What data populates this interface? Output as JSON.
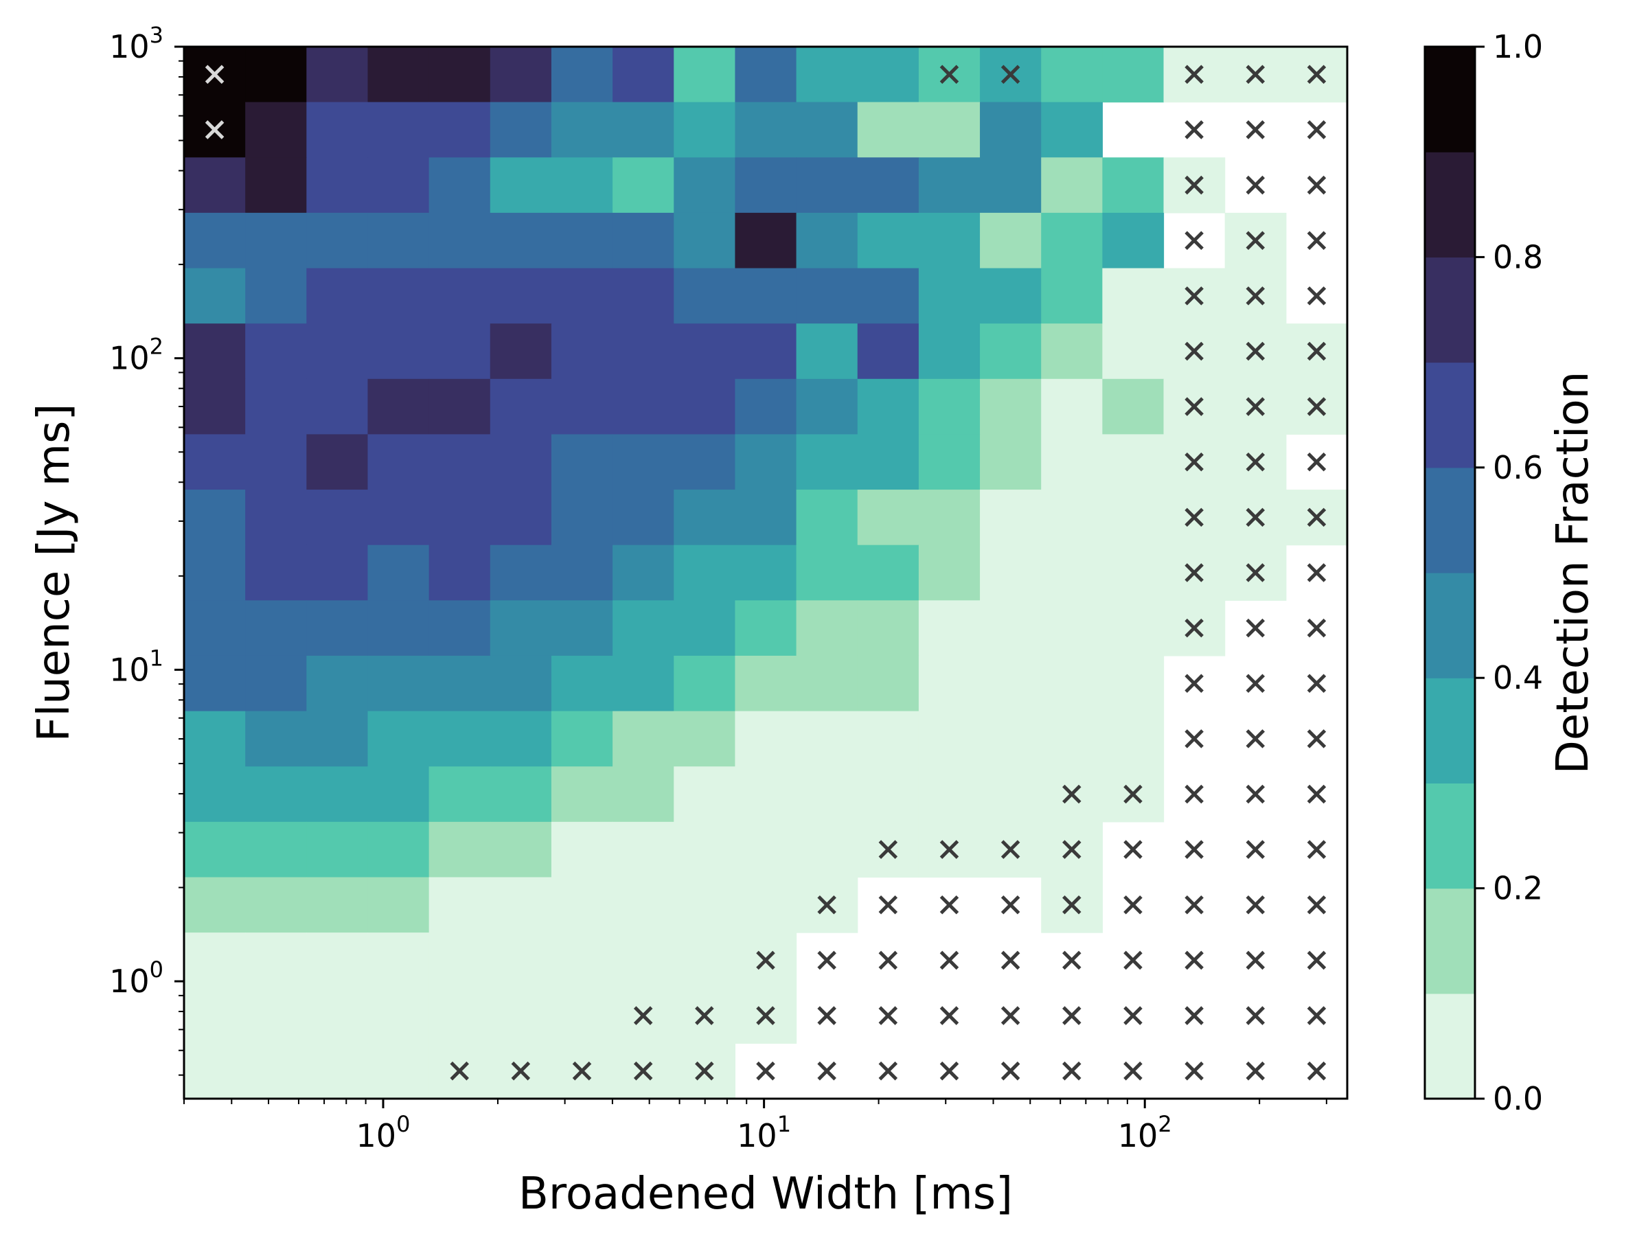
{
  "chart_data": {
    "type": "heatmap",
    "xlabel": "Broadened Width [ms]",
    "ylabel": "Fluence [Jy ms]",
    "x_scale": "log",
    "y_scale": "log",
    "x_range": [
      0.3,
      340
    ],
    "y_range": [
      0.42,
      1000
    ],
    "x_ticks": [
      {
        "value": 1,
        "base": "10",
        "exp": "0"
      },
      {
        "value": 10,
        "base": "10",
        "exp": "1"
      },
      {
        "value": 100,
        "base": "10",
        "exp": "2"
      }
    ],
    "y_ticks": [
      {
        "value": 1,
        "base": "10",
        "exp": "0"
      },
      {
        "value": 10,
        "base": "10",
        "exp": "1"
      },
      {
        "value": 100,
        "base": "10",
        "exp": "2"
      },
      {
        "value": 1000,
        "base": "10",
        "exp": "3"
      }
    ],
    "colorbar": {
      "label": "Detection Fraction",
      "range": [
        0,
        1
      ],
      "bins": 10,
      "colors": [
        "#def5e5",
        "#a0dfb9",
        "#54c9ad",
        "#38aaac",
        "#348ba6",
        "#366da0",
        "#3e4a94",
        "#382f61",
        "#2a1b35",
        "#0b0405"
      ],
      "ticks": [
        "0.0",
        "0.2",
        "0.4",
        "0.6",
        "0.8",
        "1.0"
      ]
    },
    "grid": {
      "n_cols": 19,
      "n_rows": 19,
      "x_edges_note": "log-spaced bins from ~0.3 ms to ~340 ms",
      "y_edges_note": "log-spaced bins from ~0.42 to 1000 Jy ms",
      "rows_top_to_bottom": [
        [
          9,
          9,
          7,
          8,
          8,
          7,
          5,
          6,
          2,
          5,
          3,
          3,
          2,
          3,
          2,
          2,
          0,
          0,
          0
        ],
        [
          9,
          8,
          6,
          6,
          6,
          5,
          4,
          4,
          3,
          4,
          4,
          1,
          1,
          4,
          3,
          -1,
          -1,
          -1,
          -1
        ],
        [
          7,
          8,
          6,
          6,
          5,
          3,
          3,
          2,
          4,
          5,
          5,
          5,
          4,
          4,
          1,
          2,
          0,
          -1,
          -1
        ],
        [
          5,
          5,
          5,
          5,
          5,
          5,
          5,
          5,
          4,
          8,
          4,
          3,
          3,
          1,
          2,
          3,
          -1,
          0,
          -1
        ],
        [
          4,
          5,
          6,
          6,
          6,
          6,
          6,
          6,
          5,
          5,
          5,
          5,
          3,
          3,
          2,
          0,
          0,
          0,
          -1
        ],
        [
          7,
          6,
          6,
          6,
          6,
          7,
          6,
          6,
          6,
          6,
          3,
          6,
          3,
          2,
          1,
          0,
          0,
          0,
          0
        ],
        [
          7,
          6,
          6,
          7,
          7,
          6,
          6,
          6,
          6,
          5,
          4,
          3,
          2,
          1,
          0,
          1,
          0,
          0,
          0
        ],
        [
          6,
          6,
          7,
          6,
          6,
          6,
          5,
          5,
          5,
          4,
          3,
          3,
          2,
          1,
          0,
          0,
          0,
          0,
          -1
        ],
        [
          5,
          6,
          6,
          6,
          6,
          6,
          5,
          5,
          4,
          4,
          2,
          1,
          1,
          0,
          0,
          0,
          0,
          0,
          0
        ],
        [
          5,
          6,
          6,
          5,
          6,
          5,
          5,
          4,
          3,
          3,
          2,
          2,
          1,
          0,
          0,
          0,
          0,
          0,
          -1
        ],
        [
          5,
          5,
          5,
          5,
          5,
          4,
          4,
          3,
          3,
          2,
          1,
          1,
          0,
          0,
          0,
          0,
          0,
          -1,
          -1
        ],
        [
          5,
          5,
          4,
          4,
          4,
          4,
          3,
          3,
          2,
          1,
          1,
          1,
          0,
          0,
          0,
          0,
          -1,
          -1,
          -1
        ],
        [
          3,
          4,
          4,
          3,
          3,
          3,
          2,
          1,
          1,
          0,
          0,
          0,
          0,
          0,
          0,
          0,
          -1,
          -1,
          -1
        ],
        [
          3,
          3,
          3,
          3,
          2,
          2,
          1,
          1,
          0,
          0,
          0,
          0,
          0,
          0,
          0,
          0,
          -1,
          -1,
          -1
        ],
        [
          2,
          2,
          2,
          2,
          1,
          1,
          0,
          0,
          0,
          0,
          0,
          0,
          0,
          0,
          0,
          -1,
          -1,
          -1,
          -1
        ],
        [
          1,
          1,
          1,
          1,
          0,
          0,
          0,
          0,
          0,
          0,
          0,
          -1,
          -1,
          -1,
          0,
          -1,
          -1,
          -1,
          -1
        ],
        [
          0,
          0,
          0,
          0,
          0,
          0,
          0,
          0,
          0,
          0,
          -1,
          -1,
          -1,
          -1,
          -1,
          -1,
          -1,
          -1,
          -1
        ],
        [
          0,
          0,
          0,
          0,
          0,
          0,
          0,
          0,
          0,
          0,
          -1,
          -1,
          -1,
          -1,
          -1,
          -1,
          -1,
          -1,
          -1
        ],
        [
          0,
          0,
          0,
          0,
          0,
          0,
          0,
          0,
          0,
          -1,
          -1,
          -1,
          -1,
          -1,
          -1,
          -1,
          -1,
          -1,
          -1
        ]
      ],
      "x_marks_top_to_bottom": [
        [
          0,
          "light"
        ],
        [
          12,
          "dark"
        ],
        [
          13,
          "dark"
        ],
        [
          16,
          "dark"
        ],
        [
          17,
          "dark"
        ],
        [
          18,
          "dark"
        ]
      ],
      "x_marks_detail": [
        {
          "row": 0,
          "cols": [
            {
              "c": 0,
              "s": "light"
            },
            {
              "c": 12,
              "s": "dark"
            },
            {
              "c": 13,
              "s": "dark"
            },
            {
              "c": 16,
              "s": "dark"
            },
            {
              "c": 17,
              "s": "dark"
            },
            {
              "c": 18,
              "s": "dark"
            }
          ]
        },
        {
          "row": 1,
          "cols": [
            {
              "c": 0,
              "s": "light"
            },
            {
              "c": 16,
              "s": "dark"
            },
            {
              "c": 17,
              "s": "dark"
            },
            {
              "c": 18,
              "s": "dark"
            }
          ]
        },
        {
          "row": 2,
          "cols": [
            {
              "c": 16,
              "s": "dark"
            },
            {
              "c": 17,
              "s": "dark"
            },
            {
              "c": 18,
              "s": "dark"
            }
          ]
        },
        {
          "row": 3,
          "cols": [
            {
              "c": 16,
              "s": "dark"
            },
            {
              "c": 17,
              "s": "dark"
            },
            {
              "c": 18,
              "s": "dark"
            }
          ]
        },
        {
          "row": 4,
          "cols": [
            {
              "c": 16,
              "s": "dark"
            },
            {
              "c": 17,
              "s": "dark"
            },
            {
              "c": 18,
              "s": "dark"
            }
          ]
        },
        {
          "row": 5,
          "cols": [
            {
              "c": 16,
              "s": "dark"
            },
            {
              "c": 17,
              "s": "dark"
            },
            {
              "c": 18,
              "s": "dark"
            }
          ]
        },
        {
          "row": 6,
          "cols": [
            {
              "c": 16,
              "s": "dark"
            },
            {
              "c": 17,
              "s": "dark"
            },
            {
              "c": 18,
              "s": "dark"
            }
          ]
        },
        {
          "row": 7,
          "cols": [
            {
              "c": 16,
              "s": "dark"
            },
            {
              "c": 17,
              "s": "dark"
            },
            {
              "c": 18,
              "s": "dark"
            }
          ]
        },
        {
          "row": 8,
          "cols": [
            {
              "c": 16,
              "s": "dark"
            },
            {
              "c": 17,
              "s": "dark"
            },
            {
              "c": 18,
              "s": "dark"
            }
          ]
        },
        {
          "row": 9,
          "cols": [
            {
              "c": 16,
              "s": "dark"
            },
            {
              "c": 17,
              "s": "dark"
            },
            {
              "c": 18,
              "s": "dark"
            }
          ]
        },
        {
          "row": 10,
          "cols": [
            {
              "c": 16,
              "s": "dark"
            },
            {
              "c": 17,
              "s": "dark"
            },
            {
              "c": 18,
              "s": "dark"
            }
          ]
        },
        {
          "row": 11,
          "cols": [
            {
              "c": 16,
              "s": "dark"
            },
            {
              "c": 17,
              "s": "dark"
            },
            {
              "c": 18,
              "s": "dark"
            }
          ]
        },
        {
          "row": 12,
          "cols": [
            {
              "c": 16,
              "s": "dark"
            },
            {
              "c": 17,
              "s": "dark"
            },
            {
              "c": 18,
              "s": "dark"
            }
          ]
        },
        {
          "row": 13,
          "cols": [
            {
              "c": 14,
              "s": "dark"
            },
            {
              "c": 15,
              "s": "dark"
            },
            {
              "c": 16,
              "s": "dark"
            },
            {
              "c": 17,
              "s": "dark"
            },
            {
              "c": 18,
              "s": "dark"
            }
          ]
        },
        {
          "row": 14,
          "cols": [
            {
              "c": 11,
              "s": "dark"
            },
            {
              "c": 12,
              "s": "dark"
            },
            {
              "c": 13,
              "s": "dark"
            },
            {
              "c": 14,
              "s": "dark"
            },
            {
              "c": 15,
              "s": "dark"
            },
            {
              "c": 16,
              "s": "dark"
            },
            {
              "c": 17,
              "s": "dark"
            },
            {
              "c": 18,
              "s": "dark"
            }
          ]
        },
        {
          "row": 15,
          "cols": [
            {
              "c": 10,
              "s": "dark"
            },
            {
              "c": 11,
              "s": "dark"
            },
            {
              "c": 12,
              "s": "dark"
            },
            {
              "c": 13,
              "s": "dark"
            },
            {
              "c": 14,
              "s": "dark"
            },
            {
              "c": 15,
              "s": "dark"
            },
            {
              "c": 16,
              "s": "dark"
            },
            {
              "c": 17,
              "s": "dark"
            },
            {
              "c": 18,
              "s": "dark"
            }
          ]
        },
        {
          "row": 16,
          "cols": [
            {
              "c": 9,
              "s": "dark"
            },
            {
              "c": 10,
              "s": "dark"
            },
            {
              "c": 11,
              "s": "dark"
            },
            {
              "c": 12,
              "s": "dark"
            },
            {
              "c": 13,
              "s": "dark"
            },
            {
              "c": 14,
              "s": "dark"
            },
            {
              "c": 15,
              "s": "dark"
            },
            {
              "c": 16,
              "s": "dark"
            },
            {
              "c": 17,
              "s": "dark"
            },
            {
              "c": 18,
              "s": "dark"
            }
          ]
        },
        {
          "row": 17,
          "cols": [
            {
              "c": 7,
              "s": "dark"
            },
            {
              "c": 8,
              "s": "dark"
            },
            {
              "c": 9,
              "s": "dark"
            },
            {
              "c": 10,
              "s": "dark"
            },
            {
              "c": 11,
              "s": "dark"
            },
            {
              "c": 12,
              "s": "dark"
            },
            {
              "c": 13,
              "s": "dark"
            },
            {
              "c": 14,
              "s": "dark"
            },
            {
              "c": 15,
              "s": "dark"
            },
            {
              "c": 16,
              "s": "dark"
            },
            {
              "c": 17,
              "s": "dark"
            },
            {
              "c": 18,
              "s": "dark"
            }
          ]
        },
        {
          "row": 18,
          "cols": [
            {
              "c": 4,
              "s": "dark"
            },
            {
              "c": 5,
              "s": "dark"
            },
            {
              "c": 6,
              "s": "dark"
            },
            {
              "c": 7,
              "s": "dark"
            },
            {
              "c": 8,
              "s": "dark"
            },
            {
              "c": 9,
              "s": "dark"
            },
            {
              "c": 10,
              "s": "dark"
            },
            {
              "c": 11,
              "s": "dark"
            },
            {
              "c": 12,
              "s": "dark"
            },
            {
              "c": 13,
              "s": "dark"
            },
            {
              "c": 14,
              "s": "dark"
            },
            {
              "c": 15,
              "s": "dark"
            },
            {
              "c": 16,
              "s": "dark"
            },
            {
              "c": 17,
              "s": "dark"
            },
            {
              "c": 18,
              "s": "dark"
            }
          ]
        }
      ]
    }
  }
}
